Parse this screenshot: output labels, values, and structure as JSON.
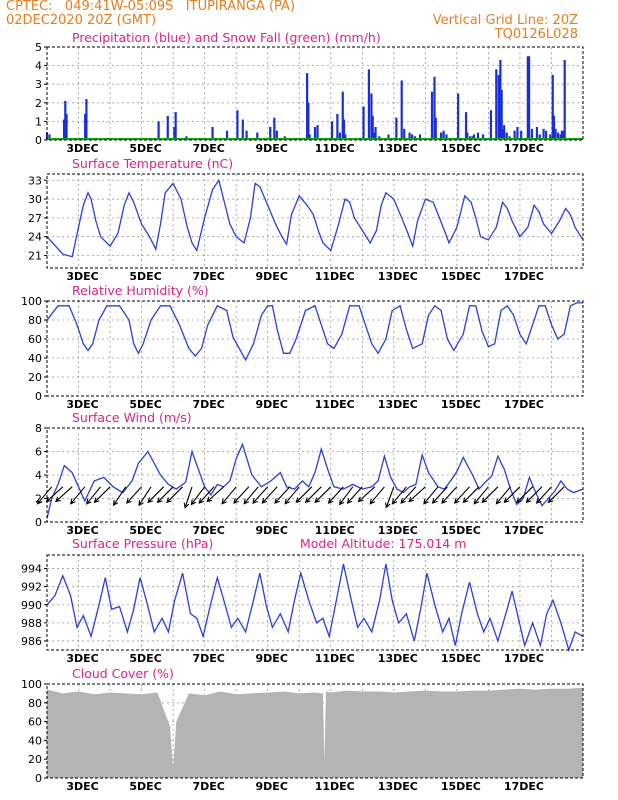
{
  "header": {
    "left_line1": "CPTEC:   049:41W-05:09S   ITUPIRANGA (PA)",
    "left_line2": "02DEC2020 20Z (GMT)",
    "right_line1": "Vertical Grid Line: 20Z",
    "right_line2": "TQ0126L028"
  },
  "colors": {
    "header": "#e87d1e",
    "title": "#e0208a",
    "line": "#2a3fe0",
    "precip": "#1a2fd8",
    "snow": "#00b000",
    "cloud": "#b4b4b4",
    "grid": "#9a9a9a"
  },
  "x_ticks": [
    "3DEC",
    "5DEC",
    "7DEC",
    "9DEC",
    "11DEC",
    "13DEC",
    "15DEC",
    "17DEC"
  ],
  "chart_data": [
    {
      "id": "precip",
      "type": "bar",
      "title": "Precipitation (blue) and Snow Fall (green) (mm/h)",
      "ylim": [
        0,
        5
      ],
      "yticks": [
        0,
        1,
        2,
        3,
        4,
        5
      ],
      "x_days": [
        0.0,
        0.08,
        0.54,
        0.58,
        0.62,
        1.21,
        1.25,
        3.54,
        3.83,
        4.04,
        4.08,
        4.42,
        5.25,
        5.71,
        6.04,
        6.21,
        6.33,
        6.67,
        7.08,
        7.21,
        7.29,
        7.54,
        8.25,
        8.29,
        8.33,
        8.5,
        8.58,
        9.04,
        9.21,
        9.29,
        9.38,
        9.42,
        9.46,
        10.04,
        10.21,
        10.29,
        10.33,
        10.38,
        10.42,
        10.54,
        10.83,
        11.08,
        11.25,
        11.33,
        11.5,
        11.58,
        11.67,
        11.83,
        12.21,
        12.29,
        12.33,
        12.5,
        12.58,
        12.67,
        13.04,
        13.29,
        13.33,
        13.42,
        13.5,
        13.54,
        13.67,
        13.83,
        14.08,
        14.25,
        14.33,
        14.38,
        14.42,
        14.46,
        14.5,
        14.58,
        14.67,
        14.83,
        14.92,
        15.04,
        15.25,
        15.29,
        15.38,
        15.54,
        15.63,
        15.75,
        15.83,
        15.96,
        16.04,
        16.08,
        16.13,
        16.21,
        16.29,
        16.33,
        16.38,
        16.42
      ],
      "values": [
        0.4,
        0.3,
        1.1,
        2.1,
        1.4,
        1.4,
        2.2,
        1.0,
        1.3,
        0.7,
        1.5,
        0.2,
        0.7,
        0.5,
        1.6,
        1.1,
        0.5,
        0.4,
        0.7,
        1.2,
        0.5,
        0.2,
        3.6,
        2.0,
        0.3,
        0.7,
        0.8,
        1.0,
        1.4,
        0.4,
        2.6,
        1.1,
        0.3,
        1.8,
        3.8,
        2.5,
        1.3,
        0.4,
        0.7,
        0.2,
        0.3,
        1.2,
        3.2,
        0.6,
        0.4,
        0.3,
        0.2,
        0.3,
        2.6,
        3.4,
        1.2,
        0.4,
        0.5,
        0.3,
        2.5,
        1.5,
        0.4,
        0.2,
        0.2,
        0.3,
        0.4,
        0.3,
        1.6,
        3.8,
        3.5,
        4.3,
        2.7,
        0.6,
        0.8,
        0.4,
        0.2,
        0.5,
        0.7,
        0.5,
        4.5,
        4.5,
        0.6,
        0.7,
        0.3,
        0.6,
        0.5,
        0.3,
        3.5,
        1.3,
        0.6,
        0.4,
        0.3,
        0.5,
        0.5,
        4.3
      ],
      "snow_values": [
        0,
        0,
        0,
        0,
        0,
        0,
        0,
        0,
        0,
        0,
        0,
        0,
        0,
        0,
        0,
        0,
        0,
        0,
        0,
        0,
        0,
        0,
        0,
        0,
        0,
        0,
        0,
        0,
        0,
        0,
        0,
        0,
        0,
        0,
        0,
        0,
        0,
        0,
        0,
        0,
        0,
        0,
        0,
        0,
        0,
        0,
        0,
        0,
        0,
        0,
        0,
        0,
        0,
        0,
        0,
        0,
        0,
        0,
        0,
        0,
        0,
        0,
        0,
        0,
        0,
        0,
        0,
        0,
        0,
        0,
        0,
        0,
        0,
        0,
        0,
        0,
        0,
        0,
        0,
        0,
        0,
        0,
        0,
        0,
        0,
        0,
        0,
        0,
        0,
        0
      ]
    },
    {
      "id": "temp",
      "type": "line",
      "title": "Surface Temperature (nC)",
      "ylim": [
        19,
        34
      ],
      "yticks": [
        21,
        24,
        27,
        30,
        33
      ],
      "x_days": [
        0,
        0.5,
        0.8,
        1.0,
        1.15,
        1.3,
        1.4,
        1.55,
        1.7,
        2.0,
        2.25,
        2.45,
        2.6,
        2.75,
        3.0,
        3.25,
        3.45,
        3.6,
        3.75,
        4.0,
        4.25,
        4.45,
        4.6,
        4.75,
        5.0,
        5.25,
        5.45,
        5.6,
        5.8,
        6.0,
        6.25,
        6.45,
        6.6,
        6.75,
        7.0,
        7.25,
        7.45,
        7.6,
        7.75,
        8.0,
        8.25,
        8.45,
        8.6,
        8.75,
        9.0,
        9.25,
        9.45,
        9.6,
        9.75,
        10.0,
        10.25,
        10.45,
        10.6,
        10.75,
        11.0,
        11.25,
        11.45,
        11.6,
        11.75,
        12.0,
        12.25,
        12.45,
        12.6,
        12.75,
        13.0,
        13.25,
        13.45,
        13.6,
        13.75,
        14.0,
        14.25,
        14.45,
        14.6,
        14.75,
        15.0,
        15.25,
        15.45,
        15.6,
        15.75,
        16.0,
        16.25,
        16.45,
        16.6,
        16.75,
        17.0
      ],
      "values": [
        24.0,
        21.2,
        20.8,
        25.5,
        29.0,
        31.0,
        30.0,
        26.5,
        24.0,
        22.5,
        24.5,
        29.0,
        31.0,
        29.5,
        26.0,
        24.0,
        22.0,
        26.0,
        31.0,
        32.5,
        30.0,
        25.5,
        23.0,
        21.8,
        27.0,
        31.5,
        33.0,
        30.0,
        26.0,
        24.0,
        23.0,
        27.0,
        32.5,
        32.0,
        29.0,
        26.0,
        24.0,
        22.8,
        27.5,
        30.5,
        29.0,
        27.5,
        25.0,
        23.0,
        21.8,
        26.0,
        30.0,
        29.5,
        27.0,
        25.0,
        23.0,
        25.0,
        29.0,
        31.0,
        30.0,
        27.0,
        24.5,
        22.5,
        26.5,
        30.0,
        29.5,
        27.0,
        25.0,
        23.0,
        25.5,
        30.5,
        29.5,
        27.0,
        24.0,
        23.5,
        25.5,
        29.5,
        28.5,
        26.5,
        24.0,
        25.5,
        29.0,
        28.0,
        26.0,
        24.5,
        26.5,
        28.5,
        27.5,
        25.5,
        23.5
      ]
    },
    {
      "id": "rh",
      "type": "line",
      "title": "Relative Humidity (%)",
      "ylim": [
        0,
        100
      ],
      "yticks": [
        0,
        20,
        40,
        60,
        80,
        100
      ],
      "x_days": [
        0,
        0.35,
        0.7,
        0.95,
        1.15,
        1.3,
        1.45,
        1.65,
        1.9,
        2.3,
        2.6,
        2.75,
        2.9,
        3.05,
        3.3,
        3.6,
        3.9,
        4.2,
        4.5,
        4.7,
        4.9,
        5.1,
        5.4,
        5.7,
        5.9,
        6.1,
        6.3,
        6.55,
        6.8,
        7.0,
        7.15,
        7.3,
        7.5,
        7.7,
        7.9,
        8.2,
        8.5,
        8.7,
        8.9,
        9.1,
        9.35,
        9.6,
        9.9,
        10.1,
        10.3,
        10.5,
        10.75,
        10.95,
        11.2,
        11.4,
        11.6,
        11.9,
        12.1,
        12.3,
        12.5,
        12.7,
        12.9,
        13.2,
        13.4,
        13.6,
        13.8,
        14.0,
        14.2,
        14.4,
        14.6,
        14.8,
        15.0,
        15.2,
        15.4,
        15.6,
        15.8,
        16.0,
        16.2,
        16.4,
        16.6,
        16.8,
        17.0
      ],
      "values": [
        80,
        95,
        95,
        75,
        55,
        48,
        55,
        80,
        95,
        95,
        80,
        55,
        45,
        55,
        80,
        95,
        95,
        75,
        50,
        42,
        50,
        75,
        95,
        90,
        62,
        50,
        38,
        55,
        85,
        95,
        95,
        70,
        45,
        45,
        60,
        90,
        95,
        75,
        55,
        50,
        65,
        95,
        95,
        75,
        55,
        45,
        60,
        90,
        95,
        70,
        50,
        55,
        85,
        95,
        90,
        60,
        48,
        65,
        95,
        95,
        68,
        52,
        55,
        90,
        95,
        85,
        65,
        55,
        75,
        95,
        95,
        75,
        60,
        65,
        95,
        98,
        98
      ]
    },
    {
      "id": "wind",
      "type": "line",
      "title": "Surface Wind (m/s)",
      "ylim": [
        0,
        8
      ],
      "yticks": [
        0,
        2,
        4,
        6,
        8
      ],
      "x_days": [
        0,
        0.15,
        0.35,
        0.55,
        0.8,
        1.0,
        1.2,
        1.5,
        1.8,
        2.1,
        2.4,
        2.7,
        2.9,
        3.2,
        3.4,
        3.6,
        3.85,
        4.1,
        4.4,
        4.6,
        4.8,
        5.0,
        5.2,
        5.4,
        5.6,
        5.8,
        6.0,
        6.2,
        6.5,
        6.8,
        7.1,
        7.4,
        7.6,
        7.85,
        8.1,
        8.3,
        8.5,
        8.7,
        8.9,
        9.1,
        9.4,
        9.7,
        10.0,
        10.3,
        10.5,
        10.7,
        10.9,
        11.1,
        11.3,
        11.5,
        11.7,
        11.9,
        12.1,
        12.4,
        12.6,
        12.8,
        13.0,
        13.2,
        13.5,
        13.7,
        13.9,
        14.1,
        14.3,
        14.5,
        14.7,
        14.9,
        15.1,
        15.3,
        15.5,
        15.7,
        15.9,
        16.1,
        16.3,
        16.5,
        16.7,
        17.0
      ],
      "values": [
        0.3,
        2.0,
        3.2,
        4.8,
        4.2,
        3.0,
        1.8,
        3.5,
        3.8,
        3.0,
        2.5,
        3.5,
        5.0,
        6.0,
        5.0,
        4.0,
        3.2,
        2.8,
        3.4,
        6.0,
        4.5,
        3.0,
        2.3,
        3.2,
        3.0,
        3.5,
        5.4,
        6.6,
        4.0,
        3.0,
        3.5,
        4.2,
        3.0,
        2.8,
        3.5,
        3.0,
        4.2,
        6.2,
        4.5,
        3.0,
        2.8,
        3.2,
        2.8,
        3.0,
        3.5,
        5.6,
        3.8,
        2.8,
        2.5,
        3.0,
        3.2,
        5.7,
        4.2,
        3.0,
        2.8,
        3.5,
        4.3,
        5.5,
        4.0,
        2.8,
        3.4,
        3.9,
        5.6,
        4.5,
        2.8,
        1.5,
        2.0,
        3.8,
        2.5,
        1.4,
        2.0,
        2.6,
        3.5,
        2.8,
        2.5,
        2.8
      ],
      "arrows_x_days": [
        0.15,
        0.5,
        0.8,
        1.2,
        1.7,
        2.0,
        2.5,
        3.0,
        3.3,
        3.7,
        4.0,
        4.3,
        4.6,
        5.0,
        5.3,
        5.6,
        6.0,
        6.4,
        6.7,
        7.0,
        7.3,
        7.7,
        8.0,
        8.4,
        8.7,
        9.0,
        9.4,
        9.7,
        10.0,
        10.4,
        10.7,
        11.0,
        11.4,
        11.7,
        12.0,
        12.4,
        12.7,
        13.0,
        13.4,
        13.7,
        14.0,
        14.3,
        14.7,
        15.0,
        15.4,
        15.7,
        16.0,
        16.4
      ],
      "arrows_dx": [
        -0.5,
        -0.6,
        -0.55,
        -0.5,
        -0.45,
        -0.5,
        -0.4,
        -0.5,
        -0.55,
        -0.5,
        -0.6,
        -0.5,
        -0.3,
        -0.45,
        -0.5,
        -0.55,
        -0.5,
        -0.5,
        -0.5,
        -0.45,
        -0.55,
        -0.5,
        -0.5,
        -0.55,
        -0.6,
        -0.5,
        -0.5,
        -0.45,
        -0.5,
        -0.55,
        -0.5,
        -0.2,
        -0.5,
        -0.5,
        -0.55,
        -0.5,
        -0.5,
        -0.55,
        -0.5,
        -0.5,
        -0.5,
        -0.55,
        -0.5,
        -0.55,
        -0.5,
        -0.6,
        -0.5,
        -0.5
      ],
      "arrows_dy": [
        -0.6,
        -0.55,
        -0.5,
        -0.6,
        -0.55,
        -0.5,
        -0.6,
        -0.55,
        -0.85,
        -0.5,
        -0.6,
        -0.5,
        -0.9,
        -0.6,
        -0.55,
        -0.5,
        -0.6,
        -0.55,
        -0.6,
        -0.5,
        -0.6,
        -0.55,
        -0.6,
        -0.55,
        -0.6,
        -0.5,
        -0.55,
        -0.6,
        -0.55,
        -0.5,
        -0.6,
        -0.55,
        -0.6,
        -0.55,
        -0.5,
        -0.6,
        -0.55,
        -0.6,
        -0.55,
        -0.5,
        -0.6,
        -0.55,
        -0.6,
        -0.55,
        -0.5,
        -0.6,
        -0.55,
        -0.5
      ]
    },
    {
      "id": "pres",
      "type": "line",
      "title": "Surface Pressure (hPa)",
      "subtitle": "Model Altitude: 175.014 m",
      "ylim": [
        985,
        995.5
      ],
      "yticks": [
        986,
        988,
        990,
        992,
        994
      ],
      "x_days": [
        0,
        0.25,
        0.5,
        0.75,
        0.95,
        1.15,
        1.4,
        1.65,
        1.85,
        2.05,
        2.3,
        2.55,
        2.75,
        2.95,
        3.15,
        3.4,
        3.65,
        3.85,
        4.05,
        4.3,
        4.55,
        4.75,
        4.95,
        5.15,
        5.4,
        5.65,
        5.85,
        6.05,
        6.3,
        6.55,
        6.75,
        6.95,
        7.15,
        7.4,
        7.65,
        7.85,
        8.05,
        8.3,
        8.55,
        8.75,
        8.95,
        9.15,
        9.4,
        9.65,
        9.85,
        10.05,
        10.3,
        10.55,
        10.75,
        10.95,
        11.15,
        11.4,
        11.65,
        11.85,
        12.05,
        12.3,
        12.55,
        12.75,
        12.95,
        13.15,
        13.4,
        13.65,
        13.85,
        14.05,
        14.3,
        14.55,
        14.75,
        14.95,
        15.15,
        15.4,
        15.65,
        15.85,
        16.05,
        16.3,
        16.55,
        16.75,
        17.0
      ],
      "values": [
        990.0,
        991.0,
        993.2,
        991.0,
        987.5,
        988.8,
        986.5,
        990.0,
        993.0,
        989.5,
        989.8,
        987.0,
        989.5,
        993.0,
        990.5,
        987.0,
        988.5,
        987.0,
        990.5,
        993.5,
        989.0,
        988.5,
        986.5,
        989.5,
        993.0,
        990.0,
        987.5,
        988.5,
        987.0,
        990.5,
        993.5,
        990.0,
        987.5,
        989.0,
        987.0,
        990.5,
        993.5,
        990.5,
        988.0,
        988.5,
        986.5,
        990.0,
        994.5,
        990.5,
        987.5,
        988.5,
        987.0,
        990.5,
        994.5,
        990.5,
        988.0,
        989.0,
        986.0,
        989.5,
        993.5,
        990.0,
        987.0,
        988.5,
        985.5,
        989.0,
        992.5,
        989.0,
        987.0,
        988.5,
        986.0,
        989.0,
        991.5,
        988.5,
        985.5,
        988.0,
        985.5,
        989.0,
        990.5,
        988.0,
        985.0,
        987.0,
        986.5
      ]
    },
    {
      "id": "cloud",
      "type": "area",
      "title": "Cloud Cover (%)",
      "ylim": [
        0,
        100
      ],
      "yticks": [
        0,
        20,
        40,
        60,
        80,
        100
      ],
      "x_days": [
        0,
        0.5,
        1.0,
        1.5,
        2.0,
        2.5,
        3.0,
        3.5,
        3.9,
        4.0,
        4.1,
        4.5,
        5.0,
        5.5,
        6.0,
        6.5,
        7.0,
        7.5,
        8.0,
        8.5,
        8.75,
        8.8,
        8.85,
        9.0,
        9.5,
        10.0,
        10.5,
        11.0,
        11.5,
        12.0,
        12.5,
        13.0,
        13.5,
        14.0,
        14.5,
        15.0,
        15.5,
        16.0,
        16.5,
        17.0
      ],
      "values": [
        94,
        90,
        92,
        89,
        91,
        90,
        89,
        91,
        55,
        10,
        60,
        90,
        88,
        92,
        89,
        90,
        91,
        92,
        90,
        91,
        90,
        18,
        92,
        91,
        93,
        92,
        92,
        91,
        92,
        93,
        92,
        92,
        93,
        93,
        94,
        95,
        94,
        95,
        95,
        96
      ]
    }
  ]
}
